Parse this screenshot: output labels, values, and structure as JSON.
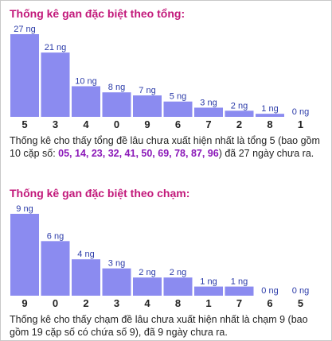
{
  "colors": {
    "title": "#c2187a",
    "bar": "#8b8bf0",
    "value_label": "#2a3aa8",
    "highlight": "#8a17b8"
  },
  "sum_section": {
    "title": "Thống kê gan đặc biệt theo tổng:",
    "desc_before": "Thống kê cho thấy tổng đề lâu chưa xuất hiện nhất là tổng 5 (bao gồm 10 cặp số: ",
    "highlight": "05, 14, 23, 32, 41, 50, 69, 78, 87, 96",
    "desc_after": ") đã 27 ngày chưa ra."
  },
  "touch_section": {
    "title": "Thống kê gan đặc biệt theo chạm:",
    "desc": "Thống kê cho thấy chạm đề lâu chưa xuất hiện nhất là chạm 9 (bao gồm 19 cặp số có chứa số 9), đã 9 ngày chưa ra."
  },
  "chart_data": [
    {
      "type": "bar",
      "title": "Thống kê gan đặc biệt theo tổng:",
      "categories": [
        "5",
        "3",
        "4",
        "0",
        "9",
        "6",
        "7",
        "2",
        "8",
        "1"
      ],
      "values": [
        27,
        21,
        10,
        8,
        7,
        5,
        3,
        2,
        1,
        0
      ],
      "value_labels": [
        "27 ng",
        "21 ng",
        "10 ng",
        "8 ng",
        "7 ng",
        "5 ng",
        "3 ng",
        "2 ng",
        "1 ng",
        "0 ng"
      ],
      "ylim": [
        0,
        27
      ]
    },
    {
      "type": "bar",
      "title": "Thống kê gan đặc biệt theo chạm:",
      "categories": [
        "9",
        "0",
        "2",
        "3",
        "4",
        "8",
        "1",
        "7",
        "6",
        "5"
      ],
      "values": [
        9,
        6,
        4,
        3,
        2,
        2,
        1,
        1,
        0,
        0
      ],
      "value_labels": [
        "9 ng",
        "6 ng",
        "4 ng",
        "3 ng",
        "2 ng",
        "2 ng",
        "1 ng",
        "1 ng",
        "0 ng",
        "0 ng"
      ],
      "ylim": [
        0,
        9
      ]
    }
  ]
}
